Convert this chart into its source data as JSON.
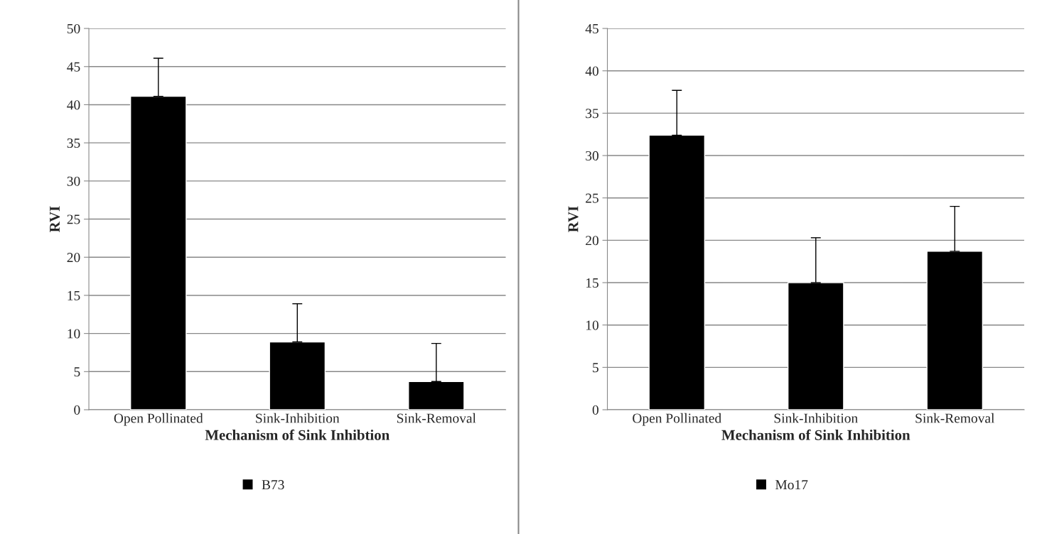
{
  "chart_data": [
    {
      "type": "bar",
      "xlabel": "Mechanism of Sink Inhibtion",
      "ylabel": "RVI",
      "categories": [
        "Open Pollinated",
        "Sink-Inhibition",
        "Sink-Removal"
      ],
      "series": [
        {
          "name": "B73",
          "color": "#000000",
          "values": [
            41.1,
            8.9,
            3.7
          ],
          "errors": [
            [
              41.1,
              46.1
            ],
            [
              8.9,
              13.9
            ],
            [
              3.7,
              8.7
            ]
          ]
        }
      ],
      "ylim": [
        0,
        50
      ],
      "yticks": [
        0,
        5,
        10,
        15,
        20,
        25,
        30,
        35,
        40,
        45,
        50
      ],
      "grid": "y",
      "legend": "bottom"
    },
    {
      "type": "bar",
      "xlabel": "Mechanism of Sink Inhibition",
      "ylabel": "RVI",
      "categories": [
        "Open Pollinated",
        "Sink-Inhibition",
        "Sink-Removal"
      ],
      "series": [
        {
          "name": "Mo17",
          "color": "#000000",
          "values": [
            32.4,
            15.0,
            18.7
          ],
          "errors": [
            [
              32.4,
              37.7
            ],
            [
              15.0,
              20.3
            ],
            [
              18.7,
              24.0
            ]
          ]
        }
      ],
      "ylim": [
        0,
        45
      ],
      "yticks": [
        0,
        5,
        10,
        15,
        20,
        25,
        30,
        35,
        40,
        45
      ],
      "grid": "y",
      "legend": "bottom"
    }
  ]
}
